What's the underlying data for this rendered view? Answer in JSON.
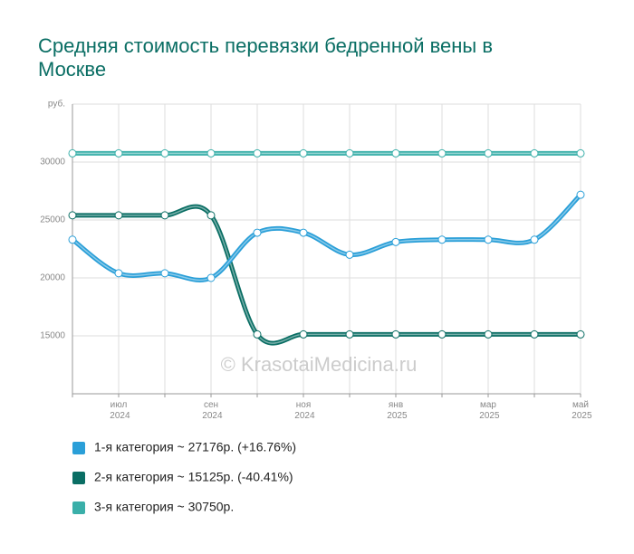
{
  "chart_data": {
    "type": "line",
    "title": "Средняя стоимость перевязки бедренной вены в Москве",
    "annotation": "© KrasotaiMedicina.ru",
    "categories": [
      null,
      "июл 2024",
      null,
      "сен 2024",
      null,
      "ноя 2024",
      null,
      "янв 2025",
      null,
      "мар 2025",
      null,
      "май 2025"
    ],
    "series": [
      {
        "name": "1-я категория ~ 27176р. (+16.76%)",
        "color": "#2a9fd8",
        "values": [
          23300,
          20400,
          20400,
          20000,
          23900,
          23900,
          22000,
          23100,
          23300,
          23300,
          23300,
          27176
        ]
      },
      {
        "name": "2-я категория ~ 15125р. (-40.41%)",
        "color": "#0a6e64",
        "values": [
          25400,
          25400,
          25400,
          25400,
          15125,
          15125,
          15125,
          15125,
          15125,
          15125,
          15125,
          15125
        ]
      },
      {
        "name": "3-я категория ~ 30750р.",
        "color": "#3aafa9",
        "values": [
          30750,
          30750,
          30750,
          30750,
          30750,
          30750,
          30750,
          30750,
          30750,
          30750,
          30750,
          30750
        ]
      }
    ],
    "ylim": [
      10000,
      35000
    ],
    "yticks": [
      15000,
      20000,
      25000,
      30000,
      {
        "value": 35000,
        "label": "руб."
      }
    ],
    "grid": true
  }
}
